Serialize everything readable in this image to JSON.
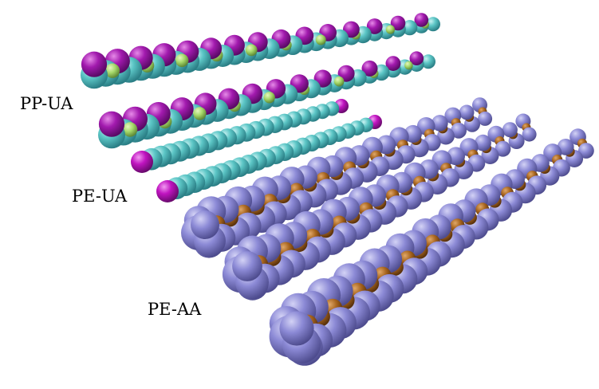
{
  "labels": {
    "pp_ua": "PP-UA",
    "pe_ua": "PE-UA",
    "pe_aa": "PE-AA"
  },
  "colors": {
    "pp_ua_backbone": "#5cc6c6",
    "pp_ua_methyl": "#9a1aa6",
    "pp_ua_highlight": "#a6d86a",
    "pe_ua_bead": "#5cc6c6",
    "pe_ua_end": "#c014c0",
    "pe_aa_hydrogen": "#8c8ad6",
    "pe_aa_carbon": "#a8651e"
  }
}
